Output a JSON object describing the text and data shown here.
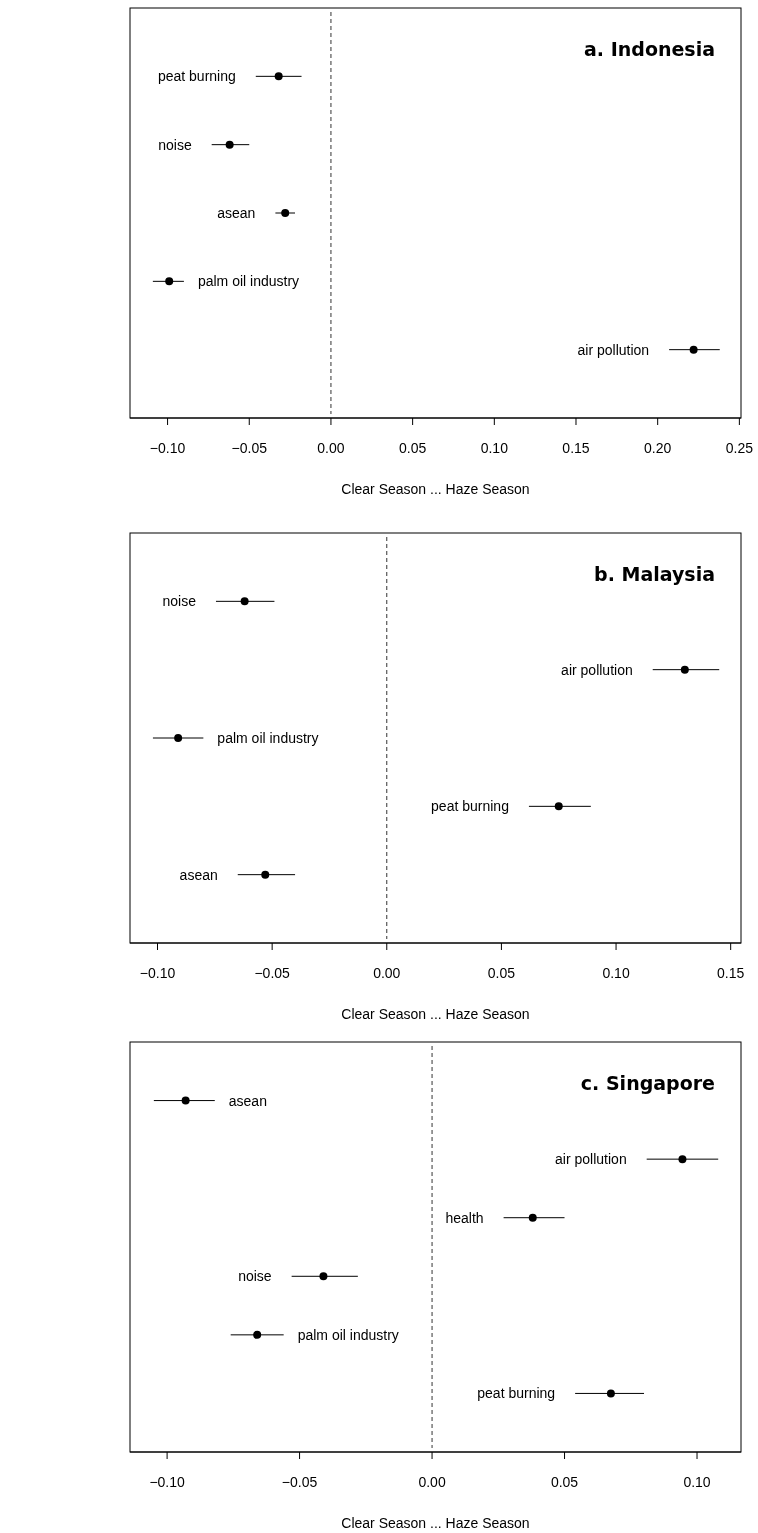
{
  "chart_data": [
    {
      "type": "scatter",
      "orientation": "horizontal",
      "title": "a. Indonesia",
      "xlabel": "Clear Season ... Haze Season",
      "categories": [
        "peat burning",
        "noise",
        "asean",
        "palm oil industry",
        "air pollution"
      ],
      "values": [
        -0.032,
        -0.062,
        -0.028,
        -0.099,
        0.222
      ],
      "errors": [
        [
          -0.046,
          -0.018
        ],
        [
          -0.073,
          -0.05
        ],
        [
          -0.034,
          -0.022
        ],
        [
          -0.109,
          -0.09
        ],
        [
          0.207,
          0.238
        ]
      ],
      "xlim": [
        -0.123,
        0.251
      ],
      "xticks": [
        {
          "value": -0.1,
          "label": "−0.10"
        },
        {
          "value": -0.05,
          "label": "−0.05"
        },
        {
          "value": 0,
          "label": "0.00"
        },
        {
          "value": 0.05,
          "label": "0.05"
        },
        {
          "value": 0.1,
          "label": "0.10"
        },
        {
          "value": 0.15,
          "label": "0.15"
        },
        {
          "value": 0.2,
          "label": "0.20"
        },
        {
          "value": 0.25,
          "label": "0.25"
        }
      ],
      "ref_lines": [
        {
          "axis": "x",
          "value": 0,
          "line_style": "dashed"
        }
      ],
      "color": "#000000",
      "marker": "circle"
    },
    {
      "type": "scatter",
      "orientation": "horizontal",
      "title": "b. Malaysia",
      "xlabel": "Clear Season ... Haze Season",
      "categories": [
        "noise",
        "air pollution",
        "palm oil industry",
        "peat burning",
        "asean"
      ],
      "values": [
        -0.062,
        0.13,
        -0.091,
        0.075,
        -0.053
      ],
      "errors": [
        [
          -0.0745,
          -0.049
        ],
        [
          0.116,
          0.145
        ],
        [
          -0.102,
          -0.08
        ],
        [
          0.062,
          0.089
        ],
        [
          -0.065,
          -0.04
        ]
      ],
      "xlim": [
        -0.112,
        0.1545
      ],
      "xticks": [
        {
          "value": -0.1,
          "label": "−0.10"
        },
        {
          "value": -0.05,
          "label": "−0.05"
        },
        {
          "value": 0,
          "label": "0.00"
        },
        {
          "value": 0.05,
          "label": "0.05"
        },
        {
          "value": 0.1,
          "label": "0.10"
        },
        {
          "value": 0.15,
          "label": "0.15"
        }
      ],
      "ref_lines": [
        {
          "axis": "x",
          "value": 0,
          "line_style": "dashed"
        }
      ],
      "color": "#000000",
      "marker": "circle"
    },
    {
      "type": "scatter",
      "orientation": "horizontal",
      "title": "c. Singapore",
      "xlabel": "Clear Season ... Haze Season",
      "categories": [
        "asean",
        "air pollution",
        "health",
        "noise",
        "palm oil industry",
        "peat burning"
      ],
      "values": [
        -0.093,
        0.0945,
        0.038,
        -0.041,
        -0.066,
        0.0675
      ],
      "errors": [
        [
          -0.105,
          -0.082
        ],
        [
          0.081,
          0.108
        ],
        [
          0.027,
          0.05
        ],
        [
          -0.053,
          -0.028
        ],
        [
          -0.076,
          -0.056
        ],
        [
          0.054,
          0.08
        ]
      ],
      "xlim": [
        -0.114,
        0.1166
      ],
      "xticks": [
        {
          "value": -0.1,
          "label": "−0.10"
        },
        {
          "value": -0.05,
          "label": "−0.05"
        },
        {
          "value": 0,
          "label": "0.00"
        },
        {
          "value": 0.05,
          "label": "0.05"
        },
        {
          "value": 0.1,
          "label": "0.10"
        }
      ],
      "ref_lines": [
        {
          "axis": "x",
          "value": 0,
          "line_style": "dashed"
        }
      ],
      "color": "#000000",
      "marker": "circle"
    }
  ]
}
